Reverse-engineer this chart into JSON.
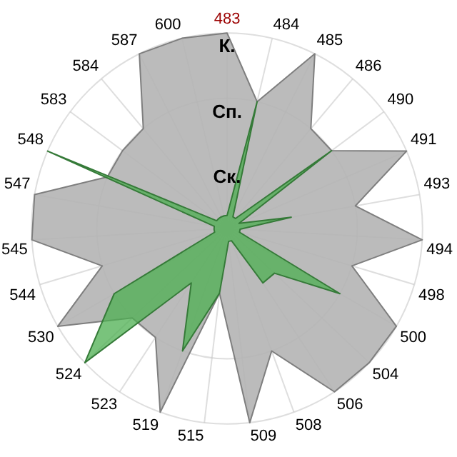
{
  "chart_data": {
    "type": "radar",
    "categories": [
      "483",
      "484",
      "485",
      "486",
      "490",
      "491",
      "493",
      "494",
      "498",
      "500",
      "504",
      "506",
      "508",
      "509",
      "515",
      "519",
      "523",
      "524",
      "530",
      "544",
      "545",
      "547",
      "548",
      "583",
      "584",
      "587",
      "600"
    ],
    "ylim": [
      0,
      3
    ],
    "yticks": [
      {
        "value": 1,
        "label": "Ск."
      },
      {
        "value": 2,
        "label": "Сп."
      },
      {
        "value": 3,
        "label": "К."
      }
    ],
    "grid": true,
    "legend": false,
    "series": [
      {
        "color": "#b4b4b4",
        "values": [
          3,
          2,
          3,
          2,
          2,
          3,
          2,
          3,
          2,
          3,
          3,
          3,
          2,
          3,
          1,
          3,
          2,
          2,
          3,
          2,
          3,
          3,
          2,
          2,
          2,
          3,
          3
        ]
      },
      {
        "color": "#4caf50",
        "values": [
          0.2,
          2,
          0.2,
          0.2,
          2,
          0.2,
          1,
          0.2,
          0.2,
          2,
          1,
          1,
          0.2,
          0.2,
          1,
          2,
          1,
          3,
          2,
          0.2,
          0.2,
          0.2,
          3,
          0.2,
          0.2,
          0.2,
          0.2
        ]
      }
    ]
  }
}
